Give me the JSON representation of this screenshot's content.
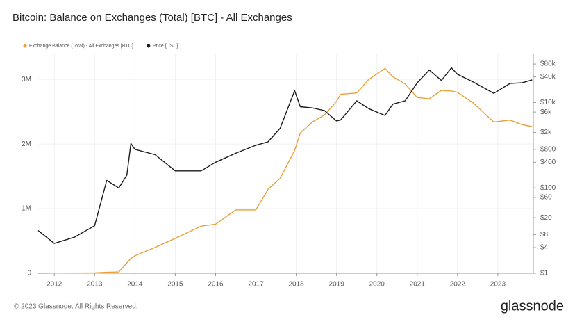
{
  "chart_data": {
    "type": "line",
    "title": "Bitcoin: Balance on Exchanges (Total) [BTC] - All Exchanges",
    "x": [
      2011.6,
      2012.0,
      2012.5,
      2013.0,
      2013.3,
      2013.6,
      2013.8,
      2013.9,
      2014.0,
      2014.5,
      2015.0,
      2015.64,
      2016.0,
      2016.5,
      2017.0,
      2017.3,
      2017.6,
      2017.96,
      2018.1,
      2018.4,
      2018.7,
      2019.0,
      2019.1,
      2019.5,
      2019.8,
      2020.2,
      2020.4,
      2020.7,
      2021.0,
      2021.3,
      2021.6,
      2021.85,
      2022.0,
      2022.4,
      2022.9,
      2023.3,
      2023.6,
      2023.85
    ],
    "series": [
      {
        "name": "Exchange Balance (Total) - All Exchanges [BTC]",
        "color": "#e8a13a",
        "values": [
          0,
          2000,
          3000,
          5000,
          15000,
          20000,
          160000,
          230000,
          270000,
          400000,
          540000,
          730000,
          760000,
          980000,
          980000,
          1300000,
          1470000,
          1900000,
          2170000,
          2340000,
          2450000,
          2660000,
          2770000,
          2790000,
          3000000,
          3170000,
          3040000,
          2930000,
          2720000,
          2700000,
          2830000,
          2820000,
          2800000,
          2630000,
          2340000,
          2370000,
          2300000,
          2270000
        ]
      },
      {
        "name": "Price [USD]",
        "color": "#1a1a1a",
        "axis": "y2",
        "values": [
          10,
          5,
          7,
          13,
          150,
          100,
          200,
          1100,
          800,
          600,
          250,
          250,
          400,
          650,
          1000,
          1200,
          2500,
          19000,
          8000,
          7500,
          6500,
          3700,
          3900,
          11000,
          7200,
          5000,
          9200,
          11000,
          29000,
          58000,
          33000,
          65000,
          46000,
          30000,
          16500,
          28000,
          29000,
          34000
        ]
      }
    ],
    "xlim": [
      2011.6,
      2023.88
    ],
    "xticks": [
      2012,
      2013,
      2014,
      2015,
      2016,
      2017,
      2018,
      2019,
      2020,
      2021,
      2022,
      2023
    ],
    "ylim": [
      0,
      3400000
    ],
    "yticks": [
      0,
      {
        "value": 1000000,
        "label": "1M"
      },
      {
        "value": 2000000,
        "label": "2M"
      },
      {
        "value": 3000000,
        "label": "3M"
      }
    ],
    "y2lim": [
      1,
      141000
    ],
    "y2log": true,
    "y2ticks": [
      {
        "value": 1,
        "label": "$1"
      },
      {
        "value": 4,
        "label": "$4"
      },
      {
        "value": 8,
        "label": "$8"
      },
      {
        "value": 20,
        "label": "$20"
      },
      {
        "value": 60,
        "label": "$60"
      },
      {
        "value": 100,
        "label": "$100"
      },
      {
        "value": 400,
        "label": "$400"
      },
      {
        "value": 800,
        "label": "$800"
      },
      {
        "value": 2000,
        "label": "$2k"
      },
      {
        "value": 6000,
        "label": "$6k"
      },
      {
        "value": 10000,
        "label": "$10k"
      },
      {
        "value": 40000,
        "label": "$40k"
      },
      {
        "value": 80000,
        "label": "$80k"
      }
    ],
    "grid": true
  },
  "footer": {
    "copyright": "© 2023 Glassnode. All Rights Reserved.",
    "logo": "glassnode"
  }
}
